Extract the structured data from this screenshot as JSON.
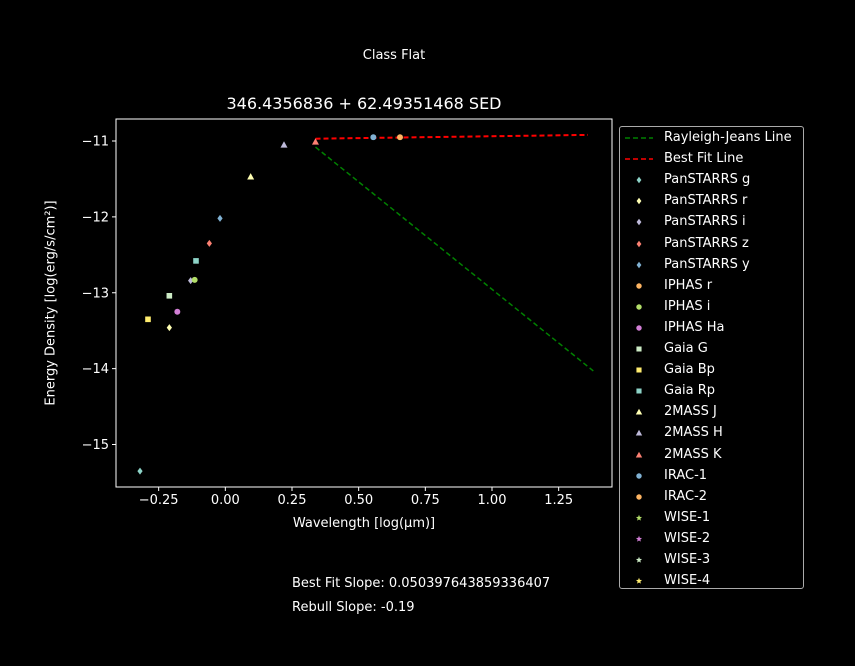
{
  "figure": {
    "suptitle": "Class Flat",
    "notes": {
      "best_fit": "Best Fit Slope: 0.050397643859336407",
      "rebull": "Rebull Slope: -0.19"
    }
  },
  "chart_data": {
    "type": "scatter",
    "title": "346.4356836 + 62.49351468 SED",
    "xlabel": "Wavelength [log(μm)]",
    "ylabel": "Energy Density [log(erg/s/cm²)]",
    "xlim": [
      -0.41,
      1.45
    ],
    "ylim": [
      -15.56,
      -10.71
    ],
    "xticks": [
      -0.25,
      0.0,
      0.25,
      0.5,
      0.75,
      1.0,
      1.25
    ],
    "xtick_labels": [
      "−0.25",
      "0.00",
      "0.25",
      "0.50",
      "0.75",
      "1.00",
      "1.25"
    ],
    "yticks": [
      -11,
      -12,
      -13,
      -14,
      -15
    ],
    "ytick_labels": [
      "−11",
      "−12",
      "−13",
      "−14",
      "−15"
    ],
    "grid": false,
    "legend_position": "outside-right",
    "lines": [
      {
        "name": "Rayleigh-Jeans Line",
        "color": "#008000",
        "style": "dashed",
        "x": [
          0.338,
          1.38
        ],
        "y": [
          -11.08,
          -14.03
        ]
      },
      {
        "name": "Best Fit Line",
        "color": "#ff0000",
        "style": "dashed",
        "x": [
          0.338,
          1.36
        ],
        "y": [
          -10.97,
          -10.92
        ]
      }
    ],
    "series": [
      {
        "name": "PanSTARRS g",
        "color": "#8dd3c7",
        "marker": "diamond",
        "x": [
          -0.32
        ],
        "y": [
          -15.35
        ]
      },
      {
        "name": "PanSTARRS r",
        "color": "#ffffb3",
        "marker": "diamond",
        "x": [
          -0.21
        ],
        "y": [
          -13.46
        ]
      },
      {
        "name": "PanSTARRS i",
        "color": "#bebada",
        "marker": "diamond",
        "x": [
          -0.13
        ],
        "y": [
          -12.84
        ]
      },
      {
        "name": "PanSTARRS z",
        "color": "#fb8072",
        "marker": "diamond",
        "x": [
          -0.06
        ],
        "y": [
          -12.35
        ]
      },
      {
        "name": "PanSTARRS y",
        "color": "#80b1d3",
        "marker": "diamond",
        "x": [
          -0.02
        ],
        "y": [
          -12.02
        ]
      },
      {
        "name": "IPHAS r",
        "color": "#fdb462",
        "marker": "circle",
        "x": [],
        "y": []
      },
      {
        "name": "IPHAS i",
        "color": "#b3de69",
        "marker": "circle",
        "x": [
          -0.115
        ],
        "y": [
          -12.83
        ]
      },
      {
        "name": "IPHAS Ha",
        "color": "#d27fd6",
        "marker": "circle",
        "x": [
          -0.18
        ],
        "y": [
          -13.25
        ]
      },
      {
        "name": "Gaia G",
        "color": "#ccebc5",
        "marker": "square",
        "x": [
          -0.21
        ],
        "y": [
          -13.04
        ]
      },
      {
        "name": "Gaia Bp",
        "color": "#ffed6f",
        "marker": "square",
        "x": [
          -0.29
        ],
        "y": [
          -13.35
        ]
      },
      {
        "name": "Gaia Rp",
        "color": "#8dd3c7",
        "marker": "square",
        "x": [
          -0.11
        ],
        "y": [
          -12.58
        ]
      },
      {
        "name": "2MASS J",
        "color": "#ffffb3",
        "marker": "triangle",
        "x": [
          0.095
        ],
        "y": [
          -11.47
        ]
      },
      {
        "name": "2MASS H",
        "color": "#bebada",
        "marker": "triangle",
        "x": [
          0.22
        ],
        "y": [
          -11.05
        ]
      },
      {
        "name": "2MASS K",
        "color": "#fb8072",
        "marker": "triangle",
        "x": [
          0.338
        ],
        "y": [
          -11.01
        ]
      },
      {
        "name": "IRAC-1",
        "color": "#80b1d3",
        "marker": "circle",
        "x": [
          0.555
        ],
        "y": [
          -10.95
        ]
      },
      {
        "name": "IRAC-2",
        "color": "#fdb462",
        "marker": "circle",
        "x": [
          0.655
        ],
        "y": [
          -10.95
        ]
      },
      {
        "name": "WISE-1",
        "color": "#b3de69",
        "marker": "star",
        "x": [],
        "y": []
      },
      {
        "name": "WISE-2",
        "color": "#d27fd6",
        "marker": "star",
        "x": [],
        "y": []
      },
      {
        "name": "WISE-3",
        "color": "#ccebc5",
        "marker": "star",
        "x": [],
        "y": []
      },
      {
        "name": "WISE-4",
        "color": "#ffed6f",
        "marker": "star",
        "x": [],
        "y": []
      }
    ]
  }
}
